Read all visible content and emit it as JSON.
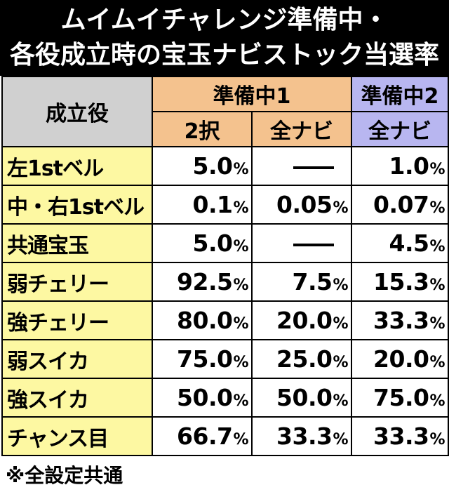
{
  "title": {
    "line1": "ムイムイチャレンジ準備中・",
    "line2": "各役成立時の宝玉ナビストック当選率"
  },
  "table": {
    "corner_label": "成立役",
    "group1": {
      "label": "準備中1",
      "sub1": "2択",
      "sub2": "全ナビ"
    },
    "group2": {
      "label": "準備中2",
      "sub1": "全ナビ"
    },
    "pct_symbol": "%",
    "rows": [
      {
        "label": "左1stベル",
        "v1": "5.0",
        "v2": "",
        "v3": "1.0"
      },
      {
        "label": "中・右1stベル",
        "v1": "0.1",
        "v2": "0.05",
        "v3": "0.07"
      },
      {
        "label": "共通宝玉",
        "v1": "5.0",
        "v2": "",
        "v3": "4.5"
      },
      {
        "label": "弱チェリー",
        "v1": "92.5",
        "v2": "7.5",
        "v3": "15.3"
      },
      {
        "label": "強チェリー",
        "v1": "80.0",
        "v2": "20.0",
        "v3": "33.3"
      },
      {
        "label": "弱スイカ",
        "v1": "75.0",
        "v2": "25.0",
        "v3": "20.0"
      },
      {
        "label": "強スイカ",
        "v1": "50.0",
        "v2": "50.0",
        "v3": "75.0"
      },
      {
        "label": "チャンス目",
        "v1": "66.7",
        "v2": "33.3",
        "v3": "33.3"
      }
    ]
  },
  "note": "※全設定共通",
  "colors": {
    "title_bg": "#000000",
    "corner_bg": "#d0d0d0",
    "group1_bg": "#f4c28e",
    "group2_bg": "#b8b6f0",
    "label_bg": "#fdf8a2"
  }
}
